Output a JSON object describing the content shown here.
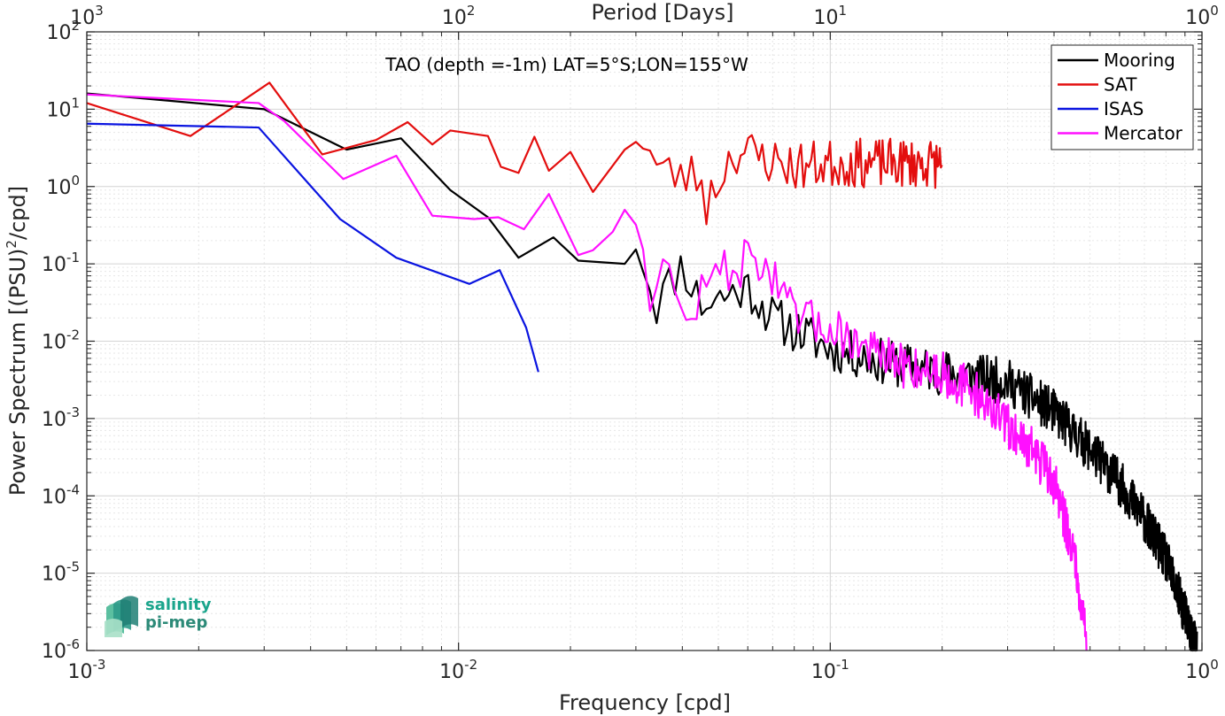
{
  "chart_data": {
    "type": "line",
    "title": "TAO (depth =-1m) LAT=5°S;LON=155°W",
    "xlabel": "Frequency [cpd]",
    "ylabel": "Power Spectrum [(PSU)",
    "ylabel_sup": "2",
    "ylabel_tail": "/cpd]",
    "top_xlabel": "Period [Days]",
    "xscale": "log",
    "yscale": "log",
    "xlim": [
      0.001,
      1
    ],
    "ylim": [
      1e-06,
      100
    ],
    "grid": true,
    "legend_position": "top-right",
    "x_ticks": [
      {
        "value": 0.001,
        "base": "10",
        "exp": "-3"
      },
      {
        "value": 0.01,
        "base": "10",
        "exp": "-2"
      },
      {
        "value": 0.1,
        "base": "10",
        "exp": "-1"
      },
      {
        "value": 1,
        "base": "10",
        "exp": "0"
      }
    ],
    "top_ticks": [
      {
        "value": 1000,
        "base": "10",
        "exp": "3"
      },
      {
        "value": 100,
        "base": "10",
        "exp": "2"
      },
      {
        "value": 10,
        "base": "10",
        "exp": "1"
      },
      {
        "value": 1,
        "base": "10",
        "exp": "0"
      }
    ],
    "y_ticks": [
      {
        "value": 100,
        "base": "10",
        "exp": "2"
      },
      {
        "value": 10,
        "base": "10",
        "exp": "1"
      },
      {
        "value": 1,
        "base": "10",
        "exp": "0"
      },
      {
        "value": 0.1,
        "base": "10",
        "exp": "-1"
      },
      {
        "value": 0.01,
        "base": "10",
        "exp": "-2"
      },
      {
        "value": 0.001,
        "base": "10",
        "exp": "-3"
      },
      {
        "value": 0.0001,
        "base": "10",
        "exp": "-4"
      },
      {
        "value": 1e-05,
        "base": "10",
        "exp": "-5"
      },
      {
        "value": 1e-06,
        "base": "10",
        "exp": "-6"
      }
    ],
    "series": [
      {
        "name": "Mooring",
        "color": "#000000",
        "anchors": [
          [
            0.001,
            16
          ],
          [
            0.003,
            10
          ],
          [
            0.005,
            3
          ],
          [
            0.007,
            4.2
          ],
          [
            0.0095,
            0.9
          ],
          [
            0.012,
            0.4
          ],
          [
            0.0145,
            0.12
          ],
          [
            0.018,
            0.22
          ],
          [
            0.021,
            0.11
          ],
          [
            0.028,
            0.1
          ],
          [
            0.03,
            0.22
          ],
          [
            0.034,
            0.03
          ],
          [
            0.04,
            0.1
          ],
          [
            0.045,
            0.03
          ],
          [
            0.06,
            0.05
          ],
          [
            0.07,
            0.02
          ],
          [
            0.1,
            0.008
          ],
          [
            0.15,
            0.005
          ],
          [
            0.2,
            0.004
          ],
          [
            0.3,
            0.003
          ],
          [
            0.4,
            0.0012
          ],
          [
            0.5,
            0.0004
          ],
          [
            0.6,
            0.00015
          ],
          [
            0.7,
            5e-05
          ],
          [
            0.8,
            1.5e-05
          ],
          [
            0.9,
            3e-06
          ],
          [
            0.97,
            1e-06
          ]
        ],
        "noise": 0.3,
        "seed": 11
      },
      {
        "name": "SAT",
        "color": "#e30e0e",
        "anchors": [
          [
            0.001,
            12
          ],
          [
            0.0019,
            4.5
          ],
          [
            0.0031,
            22
          ],
          [
            0.0043,
            2.6
          ],
          [
            0.006,
            4
          ],
          [
            0.0073,
            6.8
          ],
          [
            0.0085,
            3.5
          ],
          [
            0.0095,
            5.3
          ],
          [
            0.012,
            4.5
          ],
          [
            0.013,
            1.8
          ],
          [
            0.0145,
            1.5
          ],
          [
            0.016,
            4.4
          ],
          [
            0.0175,
            1.6
          ],
          [
            0.02,
            2.8
          ],
          [
            0.023,
            0.85
          ],
          [
            0.028,
            3
          ],
          [
            0.03,
            5.5
          ],
          [
            0.035,
            1.5
          ],
          [
            0.045,
            1.3
          ],
          [
            0.046,
            0.55
          ],
          [
            0.055,
            3
          ],
          [
            0.08,
            1.8
          ],
          [
            0.1,
            2
          ],
          [
            0.15,
            2
          ],
          [
            0.2,
            2
          ]
        ],
        "noise": 0.32,
        "seed": 23,
        "noise_from": 0.03
      },
      {
        "name": "ISAS",
        "color": "#0a14e0",
        "anchors": [
          [
            0.001,
            6.5
          ],
          [
            0.0029,
            5.8
          ],
          [
            0.0048,
            0.38
          ],
          [
            0.0068,
            0.12
          ],
          [
            0.0107,
            0.055
          ],
          [
            0.0129,
            0.083
          ],
          [
            0.0152,
            0.015
          ],
          [
            0.0164,
            0.004
          ]
        ],
        "noise": 0,
        "seed": 3
      },
      {
        "name": "Mercator",
        "color": "#ff10ff",
        "anchors": [
          [
            0.001,
            15.5
          ],
          [
            0.0029,
            12
          ],
          [
            0.0034,
            7
          ],
          [
            0.0049,
            1.25
          ],
          [
            0.0068,
            2.5
          ],
          [
            0.0085,
            0.42
          ],
          [
            0.011,
            0.38
          ],
          [
            0.0128,
            0.4
          ],
          [
            0.015,
            0.28
          ],
          [
            0.0175,
            0.8
          ],
          [
            0.021,
            0.13
          ],
          [
            0.023,
            0.15
          ],
          [
            0.026,
            0.26
          ],
          [
            0.028,
            0.5
          ],
          [
            0.03,
            0.45
          ],
          [
            0.033,
            0.04
          ],
          [
            0.036,
            0.1
          ],
          [
            0.04,
            0.018
          ],
          [
            0.05,
            0.08
          ],
          [
            0.065,
            0.12
          ],
          [
            0.08,
            0.02
          ],
          [
            0.1,
            0.015
          ],
          [
            0.15,
            0.005
          ],
          [
            0.2,
            0.004
          ],
          [
            0.25,
            0.002
          ],
          [
            0.3,
            0.0008
          ],
          [
            0.35,
            0.0004
          ],
          [
            0.4,
            0.00015
          ],
          [
            0.45,
            2e-05
          ],
          [
            0.48,
            3e-06
          ],
          [
            0.49,
            1e-06
          ]
        ],
        "noise": 0.3,
        "seed": 47,
        "noise_from": 0.03
      }
    ],
    "legend": [
      "Mooring",
      "SAT",
      "ISAS",
      "Mercator"
    ]
  },
  "logo": {
    "line1": "salinity",
    "line2": "pi-mep"
  }
}
